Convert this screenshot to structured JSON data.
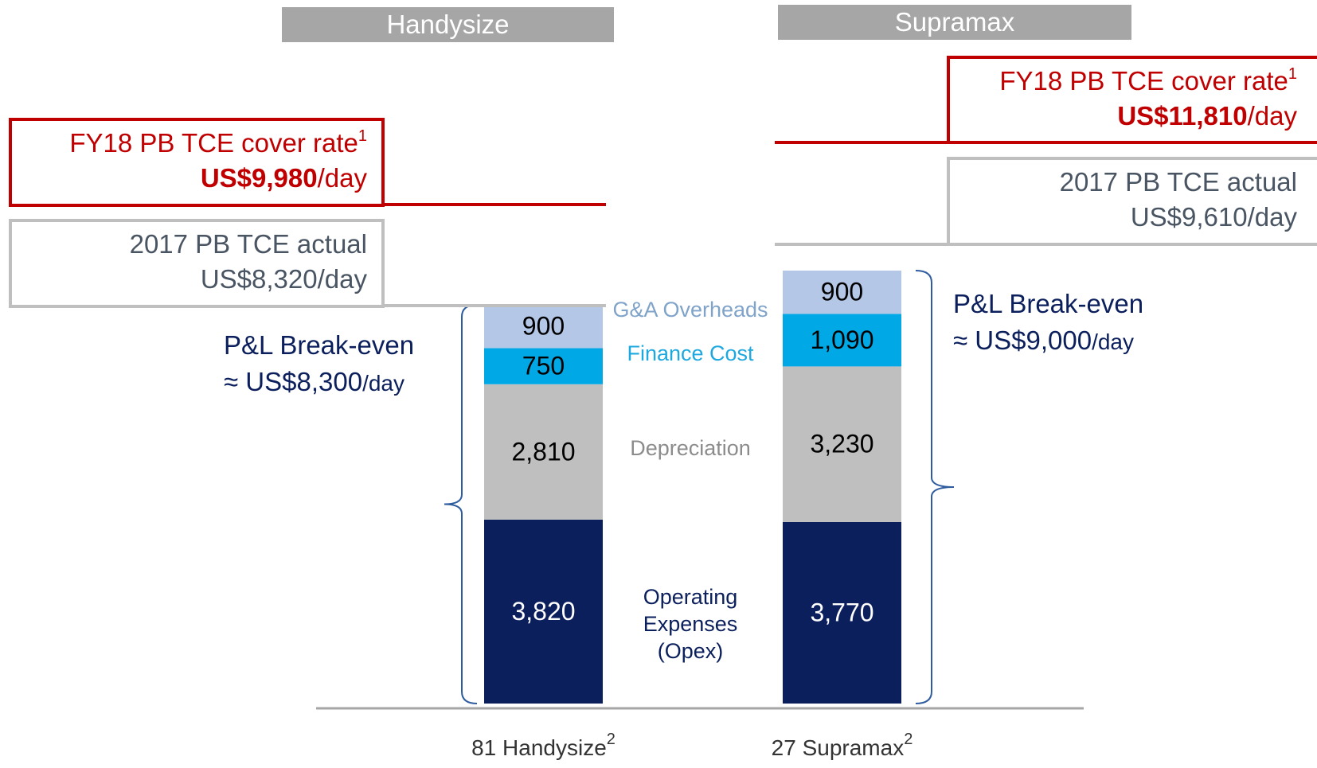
{
  "chart_data": {
    "type": "bar",
    "stacked": true,
    "categories": [
      "81 Handysize",
      "27 Supramax"
    ],
    "category_notes": [
      "2",
      "2"
    ],
    "series": [
      {
        "name": "Operating Expenses (Opex)",
        "color": "#0b1f5c",
        "text_color": "#ffffff",
        "label_color": "#0b1f5c",
        "values": [
          3820,
          3770
        ],
        "value_labels": [
          "3,820",
          "3,770"
        ]
      },
      {
        "name": "Depreciation",
        "color": "#bfbfbf",
        "text_color": "#000000",
        "label_color": "#8c8c8c",
        "values": [
          2810,
          3230
        ],
        "value_labels": [
          "2,810",
          "3,230"
        ]
      },
      {
        "name": "Finance Cost",
        "color": "#00a9e6",
        "text_color": "#000000",
        "label_color": "#1ea8e0",
        "values": [
          750,
          1090
        ],
        "value_labels": [
          "750",
          "1,090"
        ]
      },
      {
        "name": "G&A Overheads",
        "color": "#b4c7e7",
        "text_color": "#000000",
        "label_color": "#7fa3c9",
        "values": [
          900,
          900
        ],
        "value_labels": [
          "900",
          "900"
        ]
      }
    ],
    "panels": [
      {
        "header": "Handysize",
        "cover": {
          "label": "FY18 PB TCE cover rate",
          "note": "1",
          "value": "US$9,980",
          "unit": "/day"
        },
        "actual": {
          "label": "2017 PB TCE actual",
          "value": "US$8,320/day"
        },
        "breakeven": {
          "label": "P&L Break-even",
          "value": "≈ US$8,300",
          "unit": "/day"
        }
      },
      {
        "header": "Supramax",
        "cover": {
          "label": "FY18 PB TCE cover rate",
          "note": "1",
          "value": "US$11,810",
          "unit": "/day"
        },
        "actual": {
          "label": "2017 PB TCE actual",
          "value": "US$9,610/day"
        },
        "breakeven": {
          "label": "P&L Break-even",
          "value": "≈ US$9,000",
          "unit": "/day"
        }
      }
    ]
  }
}
